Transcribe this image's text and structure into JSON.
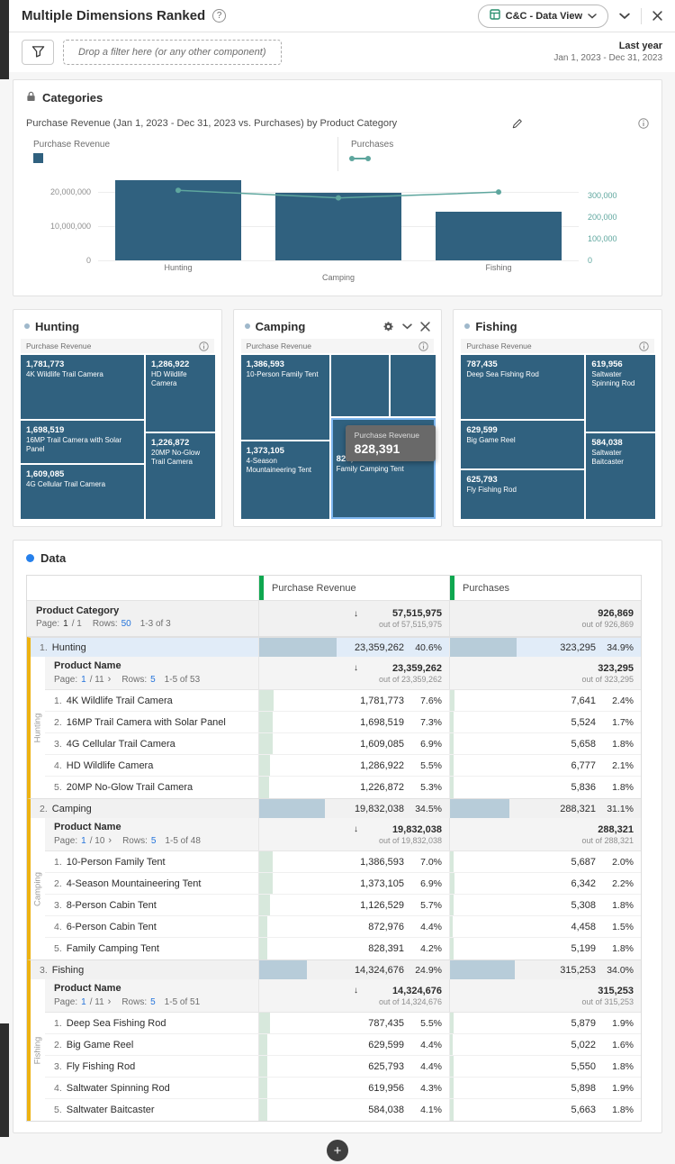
{
  "colors": {
    "bar": "#30617F",
    "line": "#5EA69E",
    "green": "#0FA750",
    "yellow": "#EDB211",
    "catbar": "#B7CCD9",
    "subbar": "#D7E8DC",
    "link": "#2574DB",
    "selrow": "#E1ECF8",
    "tooltip_bg": "#696969"
  },
  "icons": {
    "help": "?",
    "sort_desc": "↓",
    "next_page": "›",
    "add": "+"
  },
  "header": {
    "title": "Multiple Dimensions Ranked",
    "data_view": "C&C - Data View"
  },
  "filter_bar": {
    "drop_text": "Drop a filter here (or any other component)",
    "date_label": "Last year",
    "date_range": "Jan 1, 2023 - Dec 31, 2023"
  },
  "categories_panel": {
    "title": "Categories",
    "viz_title": "Purchase Revenue (Jan 1, 2023 - Dec 31, 2023 vs. Purchases) by Product Category"
  },
  "chart_data": {
    "type": "bar",
    "categories": [
      "Hunting",
      "Camping",
      "Fishing"
    ],
    "series": [
      {
        "name": "Purchase Revenue",
        "type": "bar",
        "axis": "left",
        "values": [
          23359262,
          19832038,
          14324676
        ]
      },
      {
        "name": "Purchases",
        "type": "line",
        "axis": "right",
        "values": [
          323295,
          288321,
          315253
        ]
      }
    ],
    "left_axis": {
      "max": 25000000,
      "ticks": [
        {
          "v": 0,
          "label": "0"
        },
        {
          "v": 10000000,
          "label": "10,000,000"
        },
        {
          "v": 20000000,
          "label": "20,000,000"
        }
      ]
    },
    "right_axis": {
      "max": 395000,
      "ticks": [
        {
          "v": 0,
          "label": "0"
        },
        {
          "v": 100000,
          "label": "100,000"
        },
        {
          "v": 200000,
          "label": "200,000"
        },
        {
          "v": 300000,
          "label": "300,000"
        }
      ]
    },
    "grid": "horizontal",
    "legend_position": "top"
  },
  "treemaps": [
    {
      "title": "Hunting",
      "metric": "Purchase Revenue",
      "tiles": [
        {
          "value": "1,781,773",
          "name": "4K Wildlife Trail Camera"
        },
        {
          "value": "1,286,922",
          "name": "HD Wildlife Camera"
        },
        {
          "value": "1,698,519",
          "name": "16MP Trail Camera with Solar Panel"
        },
        {
          "value": "1,226,872",
          "name": "20MP No-Glow Trail Camera"
        },
        {
          "value": "1,609,085",
          "name": "4G Cellular Trail Camera"
        }
      ]
    },
    {
      "title": "Camping",
      "metric": "Purchase Revenue",
      "tooltip": {
        "metric": "Purchase Revenue",
        "value": "828,391"
      },
      "tiles": [
        {
          "value": "1,386,593",
          "name": "10-Person Family Tent"
        },
        {
          "value": "1,373,105",
          "name": "4-Season Mountaineering Tent"
        },
        {
          "value": "828,391",
          "name": "Family Camping Tent"
        }
      ]
    },
    {
      "title": "Fishing",
      "metric": "Purchase Revenue",
      "tiles": [
        {
          "value": "787,435",
          "name": "Deep Sea Fishing Rod"
        },
        {
          "value": "619,956",
          "name": "Saltwater Spinning Rod"
        },
        {
          "value": "629,599",
          "name": "Big Game Reel"
        },
        {
          "value": "584,038",
          "name": "Saltwater Baitcaster"
        },
        {
          "value": "625,793",
          "name": "Fly Fishing Rod"
        }
      ]
    }
  ],
  "data_table": {
    "panel_title": "Data",
    "columns": [
      "Purchase Revenue",
      "Purchases"
    ],
    "header": {
      "dimension": "Product Category",
      "pagination": {
        "page_label": "Page:",
        "page": "1",
        "page_total": "/ 1",
        "has_next": false,
        "link_page": false,
        "rows_label": "Rows:",
        "rows": "50",
        "range": "1-3 of 3"
      },
      "totals": [
        {
          "value": "57,515,975",
          "out_of": "out of 57,515,975"
        },
        {
          "value": "926,869",
          "out_of": "out of 926,869"
        }
      ]
    },
    "groups": [
      {
        "index": "1.",
        "category": "Hunting",
        "selected": true,
        "revenue": {
          "value": "23,359,262",
          "pct": "40.6%"
        },
        "purchases": {
          "value": "323,295",
          "pct": "34.9%"
        },
        "sub": {
          "dimension": "Product Name",
          "pagination": {
            "page_label": "Page:",
            "page": "1",
            "page_total": "/ 11",
            "has_next": true,
            "link_page": true,
            "rows_label": "Rows:",
            "rows": "5",
            "range": "1-5 of 53"
          },
          "totals": [
            {
              "value": "23,359,262",
              "out_of": "out of 23,359,262"
            },
            {
              "value": "323,295",
              "out_of": "out of 323,295"
            }
          ],
          "rows": [
            {
              "index": "1.",
              "name": "4K Wildlife Trail Camera",
              "revenue": {
                "value": "1,781,773",
                "pct": "7.6%"
              },
              "purchases": {
                "value": "7,641",
                "pct": "2.4%"
              }
            },
            {
              "index": "2.",
              "name": "16MP Trail Camera with Solar Panel",
              "revenue": {
                "value": "1,698,519",
                "pct": "7.3%"
              },
              "purchases": {
                "value": "5,524",
                "pct": "1.7%"
              }
            },
            {
              "index": "3.",
              "name": "4G Cellular Trail Camera",
              "revenue": {
                "value": "1,609,085",
                "pct": "6.9%"
              },
              "purchases": {
                "value": "5,658",
                "pct": "1.8%"
              }
            },
            {
              "index": "4.",
              "name": "HD Wildlife Camera",
              "revenue": {
                "value": "1,286,922",
                "pct": "5.5%"
              },
              "purchases": {
                "value": "6,777",
                "pct": "2.1%"
              }
            },
            {
              "index": "5.",
              "name": "20MP No-Glow Trail Camera",
              "revenue": {
                "value": "1,226,872",
                "pct": "5.3%"
              },
              "purchases": {
                "value": "5,836",
                "pct": "1.8%"
              }
            }
          ]
        }
      },
      {
        "index": "2.",
        "category": "Camping",
        "selected": false,
        "revenue": {
          "value": "19,832,038",
          "pct": "34.5%"
        },
        "purchases": {
          "value": "288,321",
          "pct": "31.1%"
        },
        "sub": {
          "dimension": "Product Name",
          "pagination": {
            "page_label": "Page:",
            "page": "1",
            "page_total": "/ 10",
            "has_next": true,
            "link_page": true,
            "rows_label": "Rows:",
            "rows": "5",
            "range": "1-5 of 48"
          },
          "totals": [
            {
              "value": "19,832,038",
              "out_of": "out of 19,832,038"
            },
            {
              "value": "288,321",
              "out_of": "out of 288,321"
            }
          ],
          "rows": [
            {
              "index": "1.",
              "name": "10-Person Family Tent",
              "revenue": {
                "value": "1,386,593",
                "pct": "7.0%"
              },
              "purchases": {
                "value": "5,687",
                "pct": "2.0%"
              }
            },
            {
              "index": "2.",
              "name": "4-Season Mountaineering Tent",
              "revenue": {
                "value": "1,373,105",
                "pct": "6.9%"
              },
              "purchases": {
                "value": "6,342",
                "pct": "2.2%"
              }
            },
            {
              "index": "3.",
              "name": "8-Person Cabin Tent",
              "revenue": {
                "value": "1,126,529",
                "pct": "5.7%"
              },
              "purchases": {
                "value": "5,308",
                "pct": "1.8%"
              }
            },
            {
              "index": "4.",
              "name": "6-Person Cabin Tent",
              "revenue": {
                "value": "872,976",
                "pct": "4.4%"
              },
              "purchases": {
                "value": "4,458",
                "pct": "1.5%"
              }
            },
            {
              "index": "5.",
              "name": "Family Camping Tent",
              "revenue": {
                "value": "828,391",
                "pct": "4.2%"
              },
              "purchases": {
                "value": "5,199",
                "pct": "1.8%"
              }
            }
          ]
        }
      },
      {
        "index": "3.",
        "category": "Fishing",
        "selected": false,
        "revenue": {
          "value": "14,324,676",
          "pct": "24.9%"
        },
        "purchases": {
          "value": "315,253",
          "pct": "34.0%"
        },
        "sub": {
          "dimension": "Product Name",
          "pagination": {
            "page_label": "Page:",
            "page": "1",
            "page_total": "/ 11",
            "has_next": true,
            "link_page": true,
            "rows_label": "Rows:",
            "rows": "5",
            "range": "1-5 of 51"
          },
          "totals": [
            {
              "value": "14,324,676",
              "out_of": "out of 14,324,676"
            },
            {
              "value": "315,253",
              "out_of": "out of 315,253"
            }
          ],
          "rows": [
            {
              "index": "1.",
              "name": "Deep Sea Fishing Rod",
              "revenue": {
                "value": "787,435",
                "pct": "5.5%"
              },
              "purchases": {
                "value": "5,879",
                "pct": "1.9%"
              }
            },
            {
              "index": "2.",
              "name": "Big Game Reel",
              "revenue": {
                "value": "629,599",
                "pct": "4.4%"
              },
              "purchases": {
                "value": "5,022",
                "pct": "1.6%"
              }
            },
            {
              "index": "3.",
              "name": "Fly Fishing Rod",
              "revenue": {
                "value": "625,793",
                "pct": "4.4%"
              },
              "purchases": {
                "value": "5,550",
                "pct": "1.8%"
              }
            },
            {
              "index": "4.",
              "name": "Saltwater Spinning Rod",
              "revenue": {
                "value": "619,956",
                "pct": "4.3%"
              },
              "purchases": {
                "value": "5,898",
                "pct": "1.9%"
              }
            },
            {
              "index": "5.",
              "name": "Saltwater Baitcaster",
              "revenue": {
                "value": "584,038",
                "pct": "4.1%"
              },
              "purchases": {
                "value": "5,663",
                "pct": "1.8%"
              }
            }
          ]
        }
      }
    ]
  }
}
